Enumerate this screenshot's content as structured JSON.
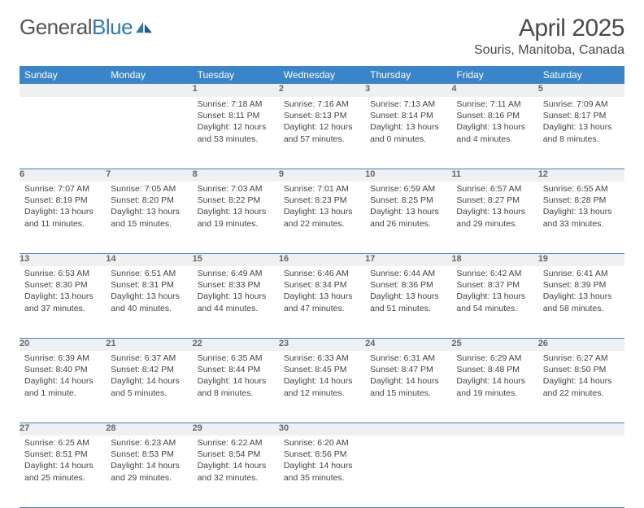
{
  "logo": {
    "text_a": "General",
    "text_b": "Blue"
  },
  "title": "April 2025",
  "location": "Souris, Manitoba, Canada",
  "colors": {
    "header_bg": "#3a85c9",
    "header_text": "#ffffff",
    "row_border": "#3a85c9",
    "daynum_bg": "#eef0f2",
    "daynum_text": "#666666",
    "body_text": "#444444",
    "page_bg": "#ffffff",
    "logo_gray": "#555555",
    "logo_blue": "#2f79b9"
  },
  "weekdays": [
    "Sunday",
    "Monday",
    "Tuesday",
    "Wednesday",
    "Thursday",
    "Friday",
    "Saturday"
  ],
  "weeks": [
    [
      {
        "n": "",
        "sr": "",
        "ss": "",
        "dl": ""
      },
      {
        "n": "",
        "sr": "",
        "ss": "",
        "dl": ""
      },
      {
        "n": "1",
        "sr": "7:18 AM",
        "ss": "8:11 PM",
        "dl": "12 hours and 53 minutes."
      },
      {
        "n": "2",
        "sr": "7:16 AM",
        "ss": "8:13 PM",
        "dl": "12 hours and 57 minutes."
      },
      {
        "n": "3",
        "sr": "7:13 AM",
        "ss": "8:14 PM",
        "dl": "13 hours and 0 minutes."
      },
      {
        "n": "4",
        "sr": "7:11 AM",
        "ss": "8:16 PM",
        "dl": "13 hours and 4 minutes."
      },
      {
        "n": "5",
        "sr": "7:09 AM",
        "ss": "8:17 PM",
        "dl": "13 hours and 8 minutes."
      }
    ],
    [
      {
        "n": "6",
        "sr": "7:07 AM",
        "ss": "8:19 PM",
        "dl": "13 hours and 11 minutes."
      },
      {
        "n": "7",
        "sr": "7:05 AM",
        "ss": "8:20 PM",
        "dl": "13 hours and 15 minutes."
      },
      {
        "n": "8",
        "sr": "7:03 AM",
        "ss": "8:22 PM",
        "dl": "13 hours and 19 minutes."
      },
      {
        "n": "9",
        "sr": "7:01 AM",
        "ss": "8:23 PM",
        "dl": "13 hours and 22 minutes."
      },
      {
        "n": "10",
        "sr": "6:59 AM",
        "ss": "8:25 PM",
        "dl": "13 hours and 26 minutes."
      },
      {
        "n": "11",
        "sr": "6:57 AM",
        "ss": "8:27 PM",
        "dl": "13 hours and 29 minutes."
      },
      {
        "n": "12",
        "sr": "6:55 AM",
        "ss": "8:28 PM",
        "dl": "13 hours and 33 minutes."
      }
    ],
    [
      {
        "n": "13",
        "sr": "6:53 AM",
        "ss": "8:30 PM",
        "dl": "13 hours and 37 minutes."
      },
      {
        "n": "14",
        "sr": "6:51 AM",
        "ss": "8:31 PM",
        "dl": "13 hours and 40 minutes."
      },
      {
        "n": "15",
        "sr": "6:49 AM",
        "ss": "8:33 PM",
        "dl": "13 hours and 44 minutes."
      },
      {
        "n": "16",
        "sr": "6:46 AM",
        "ss": "8:34 PM",
        "dl": "13 hours and 47 minutes."
      },
      {
        "n": "17",
        "sr": "6:44 AM",
        "ss": "8:36 PM",
        "dl": "13 hours and 51 minutes."
      },
      {
        "n": "18",
        "sr": "6:42 AM",
        "ss": "8:37 PM",
        "dl": "13 hours and 54 minutes."
      },
      {
        "n": "19",
        "sr": "6:41 AM",
        "ss": "8:39 PM",
        "dl": "13 hours and 58 minutes."
      }
    ],
    [
      {
        "n": "20",
        "sr": "6:39 AM",
        "ss": "8:40 PM",
        "dl": "14 hours and 1 minute."
      },
      {
        "n": "21",
        "sr": "6:37 AM",
        "ss": "8:42 PM",
        "dl": "14 hours and 5 minutes."
      },
      {
        "n": "22",
        "sr": "6:35 AM",
        "ss": "8:44 PM",
        "dl": "14 hours and 8 minutes."
      },
      {
        "n": "23",
        "sr": "6:33 AM",
        "ss": "8:45 PM",
        "dl": "14 hours and 12 minutes."
      },
      {
        "n": "24",
        "sr": "6:31 AM",
        "ss": "8:47 PM",
        "dl": "14 hours and 15 minutes."
      },
      {
        "n": "25",
        "sr": "6:29 AM",
        "ss": "8:48 PM",
        "dl": "14 hours and 19 minutes."
      },
      {
        "n": "26",
        "sr": "6:27 AM",
        "ss": "8:50 PM",
        "dl": "14 hours and 22 minutes."
      }
    ],
    [
      {
        "n": "27",
        "sr": "6:25 AM",
        "ss": "8:51 PM",
        "dl": "14 hours and 25 minutes."
      },
      {
        "n": "28",
        "sr": "6:23 AM",
        "ss": "8:53 PM",
        "dl": "14 hours and 29 minutes."
      },
      {
        "n": "29",
        "sr": "6:22 AM",
        "ss": "8:54 PM",
        "dl": "14 hours and 32 minutes."
      },
      {
        "n": "30",
        "sr": "6:20 AM",
        "ss": "8:56 PM",
        "dl": "14 hours and 35 minutes."
      },
      {
        "n": "",
        "sr": "",
        "ss": "",
        "dl": ""
      },
      {
        "n": "",
        "sr": "",
        "ss": "",
        "dl": ""
      },
      {
        "n": "",
        "sr": "",
        "ss": "",
        "dl": ""
      }
    ]
  ],
  "labels": {
    "sunrise": "Sunrise:",
    "sunset": "Sunset:",
    "daylight": "Daylight:"
  }
}
